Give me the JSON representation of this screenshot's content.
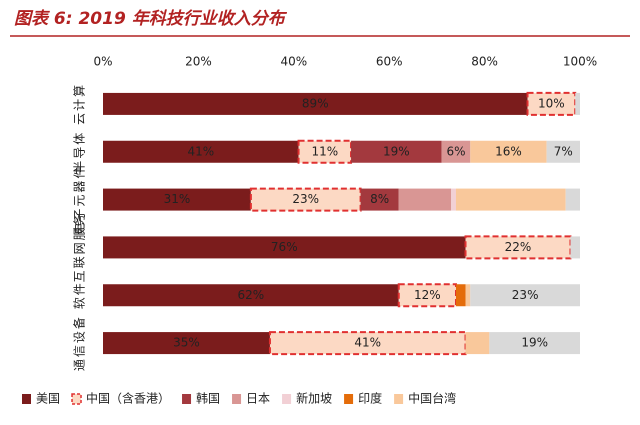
{
  "chart_data": {
    "type": "stacked-bar-horizontal",
    "title": "图表 6: 2019 年科技行业收入分布",
    "categories": [
      "云计算",
      "半导体",
      "电子元器件",
      "互联网服务",
      "软件",
      "通信设备"
    ],
    "xlim": [
      0,
      100
    ],
    "xticks": [
      {
        "value": 0,
        "label": "0%"
      },
      {
        "value": 20,
        "label": "20%"
      },
      {
        "value": 40,
        "label": "40%"
      },
      {
        "value": 60,
        "label": "60%"
      },
      {
        "value": 80,
        "label": "80%"
      },
      {
        "value": 100,
        "label": "100%"
      }
    ],
    "grid": false,
    "legend": "bottom",
    "series": [
      {
        "name": "美国",
        "color": "#7b1c1c",
        "values": [
          89,
          41,
          31,
          76,
          62,
          35
        ],
        "value_labels": [
          "89%",
          "41%",
          "31%",
          "76%",
          "62%",
          "35%"
        ]
      },
      {
        "name": "中国（含香港）",
        "color": "#fcd9c4",
        "dashed": true,
        "values": [
          10,
          11,
          23,
          22,
          12,
          41
        ],
        "value_labels": [
          "10%",
          "11%",
          "23%",
          "22%",
          "12%",
          "41%"
        ]
      },
      {
        "name": "韩国",
        "color": "#a3393e",
        "values": [
          0,
          19,
          8,
          0,
          0,
          0
        ],
        "value_labels": [
          null,
          "19%",
          "8%",
          null,
          null,
          null
        ]
      },
      {
        "name": "日本",
        "color": "#d99694",
        "values": [
          0,
          6,
          11,
          0,
          0,
          0
        ],
        "value_labels": [
          null,
          "6%",
          null,
          null,
          null,
          null
        ]
      },
      {
        "name": "新加坡",
        "color": "#f2d0d5",
        "values": [
          0,
          0,
          1,
          0,
          0,
          0
        ],
        "value_labels": [
          null,
          null,
          null,
          null,
          null,
          null
        ]
      },
      {
        "name": "印度",
        "color": "#e46c0a",
        "values": [
          0,
          0,
          0,
          0,
          2,
          0
        ],
        "value_labels": [
          null,
          null,
          null,
          null,
          null,
          null
        ]
      },
      {
        "name": "中国台湾",
        "color": "#f9c89b",
        "values": [
          0,
          16,
          23,
          0,
          1,
          5
        ],
        "value_labels": [
          null,
          "16%",
          null,
          null,
          null,
          null
        ]
      },
      {
        "name": null,
        "color": "#d9d9d9",
        "values": [
          1,
          7,
          3,
          2,
          23,
          19
        ],
        "value_labels": [
          null,
          "7%",
          null,
          null,
          "23%",
          "19%"
        ]
      }
    ]
  }
}
